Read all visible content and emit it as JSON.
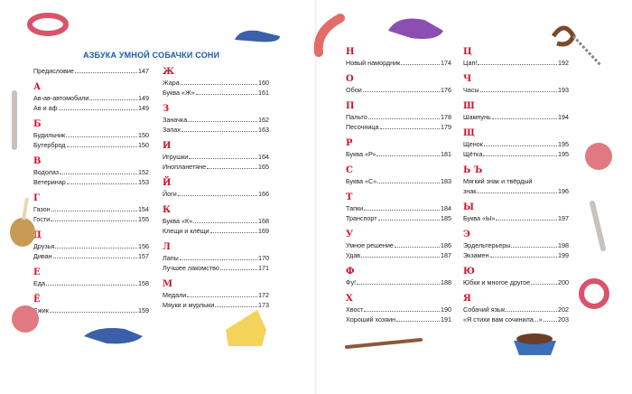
{
  "title": "АЗБУКА УМНОЙ СОБАЧКИ СОНИ",
  "columns": [
    [
      {
        "letter": "",
        "items": [
          {
            "t": "Предисловие",
            "p": "147"
          }
        ]
      },
      {
        "letter": "А",
        "items": [
          {
            "t": "Ав-ав-автомобили",
            "p": "149"
          },
          {
            "t": "Ав и аф",
            "p": "149"
          }
        ]
      },
      {
        "letter": "Б",
        "items": [
          {
            "t": "Будильник",
            "p": "150"
          },
          {
            "t": "Бутерброд",
            "p": "150"
          }
        ]
      },
      {
        "letter": "В",
        "items": [
          {
            "t": "Водолаз",
            "p": "152"
          },
          {
            "t": "Ветеринар",
            "p": "153"
          }
        ]
      },
      {
        "letter": "Г",
        "items": [
          {
            "t": "Газон",
            "p": "154"
          },
          {
            "t": "Гости",
            "p": "155"
          }
        ]
      },
      {
        "letter": "Д",
        "items": [
          {
            "t": "Друзья",
            "p": "156"
          },
          {
            "t": "Диван",
            "p": "157"
          }
        ]
      },
      {
        "letter": "Е",
        "items": [
          {
            "t": "Еда",
            "p": "158"
          }
        ]
      },
      {
        "letter": "Ё",
        "items": [
          {
            "t": "Ежик",
            "p": "159"
          }
        ]
      }
    ],
    [
      {
        "letter": "Ж",
        "items": [
          {
            "t": "Жара",
            "p": "160"
          },
          {
            "t": "Буква «Ж»",
            "p": "161"
          }
        ]
      },
      {
        "letter": "З",
        "items": [
          {
            "t": "Заначка",
            "p": "162"
          },
          {
            "t": "Запах",
            "p": "163"
          }
        ]
      },
      {
        "letter": "И",
        "items": [
          {
            "t": "Игрушки",
            "p": "164"
          },
          {
            "t": "Инопланетяне",
            "p": "165"
          }
        ]
      },
      {
        "letter": "Й",
        "items": [
          {
            "t": "Йоги",
            "p": "166"
          }
        ]
      },
      {
        "letter": "К",
        "items": [
          {
            "t": "Буква «К»",
            "p": "168"
          },
          {
            "t": "Клещи и клёщи",
            "p": "169"
          }
        ]
      },
      {
        "letter": "Л",
        "items": [
          {
            "t": "Лапы",
            "p": "170"
          },
          {
            "t": "Лучшее лакомство",
            "p": "171"
          }
        ]
      },
      {
        "letter": "М",
        "items": [
          {
            "t": "Медали",
            "p": "172"
          },
          {
            "t": "Мяуки и мурлыки",
            "p": "173"
          }
        ]
      }
    ],
    [
      {
        "letter": "Н",
        "items": [
          {
            "t": "Новый намордник",
            "p": "174"
          }
        ]
      },
      {
        "letter": "О",
        "items": [
          {
            "t": "Обои",
            "p": "176"
          }
        ]
      },
      {
        "letter": "П",
        "items": [
          {
            "t": "Пальто",
            "p": "178"
          },
          {
            "t": "Песочница",
            "p": "179"
          }
        ]
      },
      {
        "letter": "Р",
        "items": [
          {
            "t": "Буква «Р»",
            "p": "181"
          }
        ]
      },
      {
        "letter": "С",
        "items": [
          {
            "t": "Буква «С»",
            "p": "183"
          }
        ]
      },
      {
        "letter": "Т",
        "items": [
          {
            "t": "Тапки",
            "p": "184"
          },
          {
            "t": "Транспорт",
            "p": "185"
          }
        ]
      },
      {
        "letter": "У",
        "items": [
          {
            "t": "Умное решение",
            "p": "186"
          },
          {
            "t": "Удав",
            "p": "187"
          }
        ]
      },
      {
        "letter": "Ф",
        "items": [
          {
            "t": "Фу!",
            "p": "188"
          }
        ]
      },
      {
        "letter": "Х",
        "items": [
          {
            "t": "Хвост",
            "p": "190"
          },
          {
            "t": "Хороший хозяин",
            "p": "191"
          }
        ]
      }
    ],
    [
      {
        "letter": "Ц",
        "items": [
          {
            "t": "Цап!",
            "p": "192"
          }
        ]
      },
      {
        "letter": "Ч",
        "items": [
          {
            "t": "Часы",
            "p": "193"
          }
        ]
      },
      {
        "letter": "Ш",
        "items": [
          {
            "t": "Шампунь",
            "p": "194"
          }
        ]
      },
      {
        "letter": "Щ",
        "items": [
          {
            "t": "Щенок",
            "p": "195"
          },
          {
            "t": "Щётка",
            "p": "195"
          }
        ]
      },
      {
        "letter": "Ь Ъ",
        "items": [
          {
            "t": "Мягкий знак и твёрдый",
            "p": ""
          },
          {
            "t": "знак",
            "p": "196"
          }
        ]
      },
      {
        "letter": "Ы",
        "items": [
          {
            "t": "Буква «Ы»",
            "p": "197"
          }
        ]
      },
      {
        "letter": "Э",
        "items": [
          {
            "t": "Эрдельтерьеры",
            "p": "198"
          },
          {
            "t": "Экзамен",
            "p": "199"
          }
        ]
      },
      {
        "letter": "Ю",
        "items": [
          {
            "t": "Юбки и многое другое",
            "p": "200"
          }
        ]
      },
      {
        "letter": "Я",
        "items": [
          {
            "t": "Собачий язык",
            "p": "202"
          },
          {
            "t": "«Я стихи вам сочинила...»",
            "p": "203"
          }
        ]
      }
    ]
  ]
}
